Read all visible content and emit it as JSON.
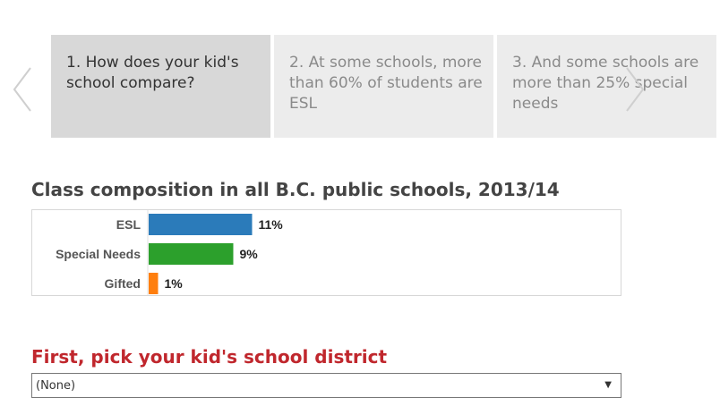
{
  "carousel": {
    "cards": [
      {
        "text": "1. How does your kid's school compare?",
        "active": true
      },
      {
        "text": "2. At some schools, more than 60% of students are ESL",
        "active": false
      },
      {
        "text": "3. And some schools are more than 25% special needs",
        "active": false
      }
    ]
  },
  "chart": {
    "title": "Class composition in all B.C. public schools, 2013/14"
  },
  "chart_data": {
    "type": "bar",
    "orientation": "horizontal",
    "title": "Class composition in all B.C. public schools, 2013/14",
    "categories": [
      "ESL",
      "Special Needs",
      "Gifted"
    ],
    "values": [
      11,
      9,
      1
    ],
    "value_labels": [
      "11%",
      "9%",
      "1%"
    ],
    "colors": [
      "#2b7bba",
      "#2ca02c",
      "#ff7f0e"
    ],
    "xlim": [
      0,
      100
    ],
    "grid": false,
    "legend": "none"
  },
  "district": {
    "title": "First, pick your kid's school district",
    "selected": "(None)",
    "caret": "▼"
  },
  "icons": {
    "prev": "chevron-left-icon",
    "next": "chevron-right-icon"
  }
}
